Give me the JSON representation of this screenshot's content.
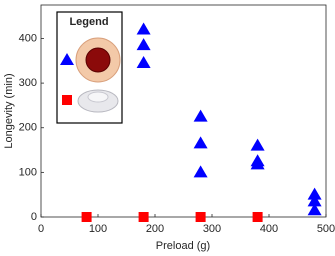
{
  "chart_data": {
    "type": "scatter",
    "x_label": "Preload (g)",
    "y_label": "Longevity (min)",
    "legend_title": "Legend",
    "xlim": [
      0,
      500
    ],
    "xticks": [
      0,
      100,
      200,
      300,
      400,
      500
    ],
    "ylim": [
      0,
      475
    ],
    "yticks": [
      0,
      100,
      200,
      300,
      400
    ],
    "series": [
      {
        "color": "#0000ff",
        "marker": "triangle",
        "x": [
          180,
          180,
          180,
          280,
          280,
          280,
          380,
          380,
          380,
          480,
          480,
          480
        ],
        "y": [
          420,
          385,
          345,
          225,
          165,
          100,
          160,
          125,
          118,
          50,
          35,
          15
        ]
      },
      {
        "color": "#ff0000",
        "marker": "square",
        "x": [
          80,
          180,
          280,
          380
        ],
        "y": [
          0,
          0,
          0,
          0
        ]
      }
    ]
  }
}
